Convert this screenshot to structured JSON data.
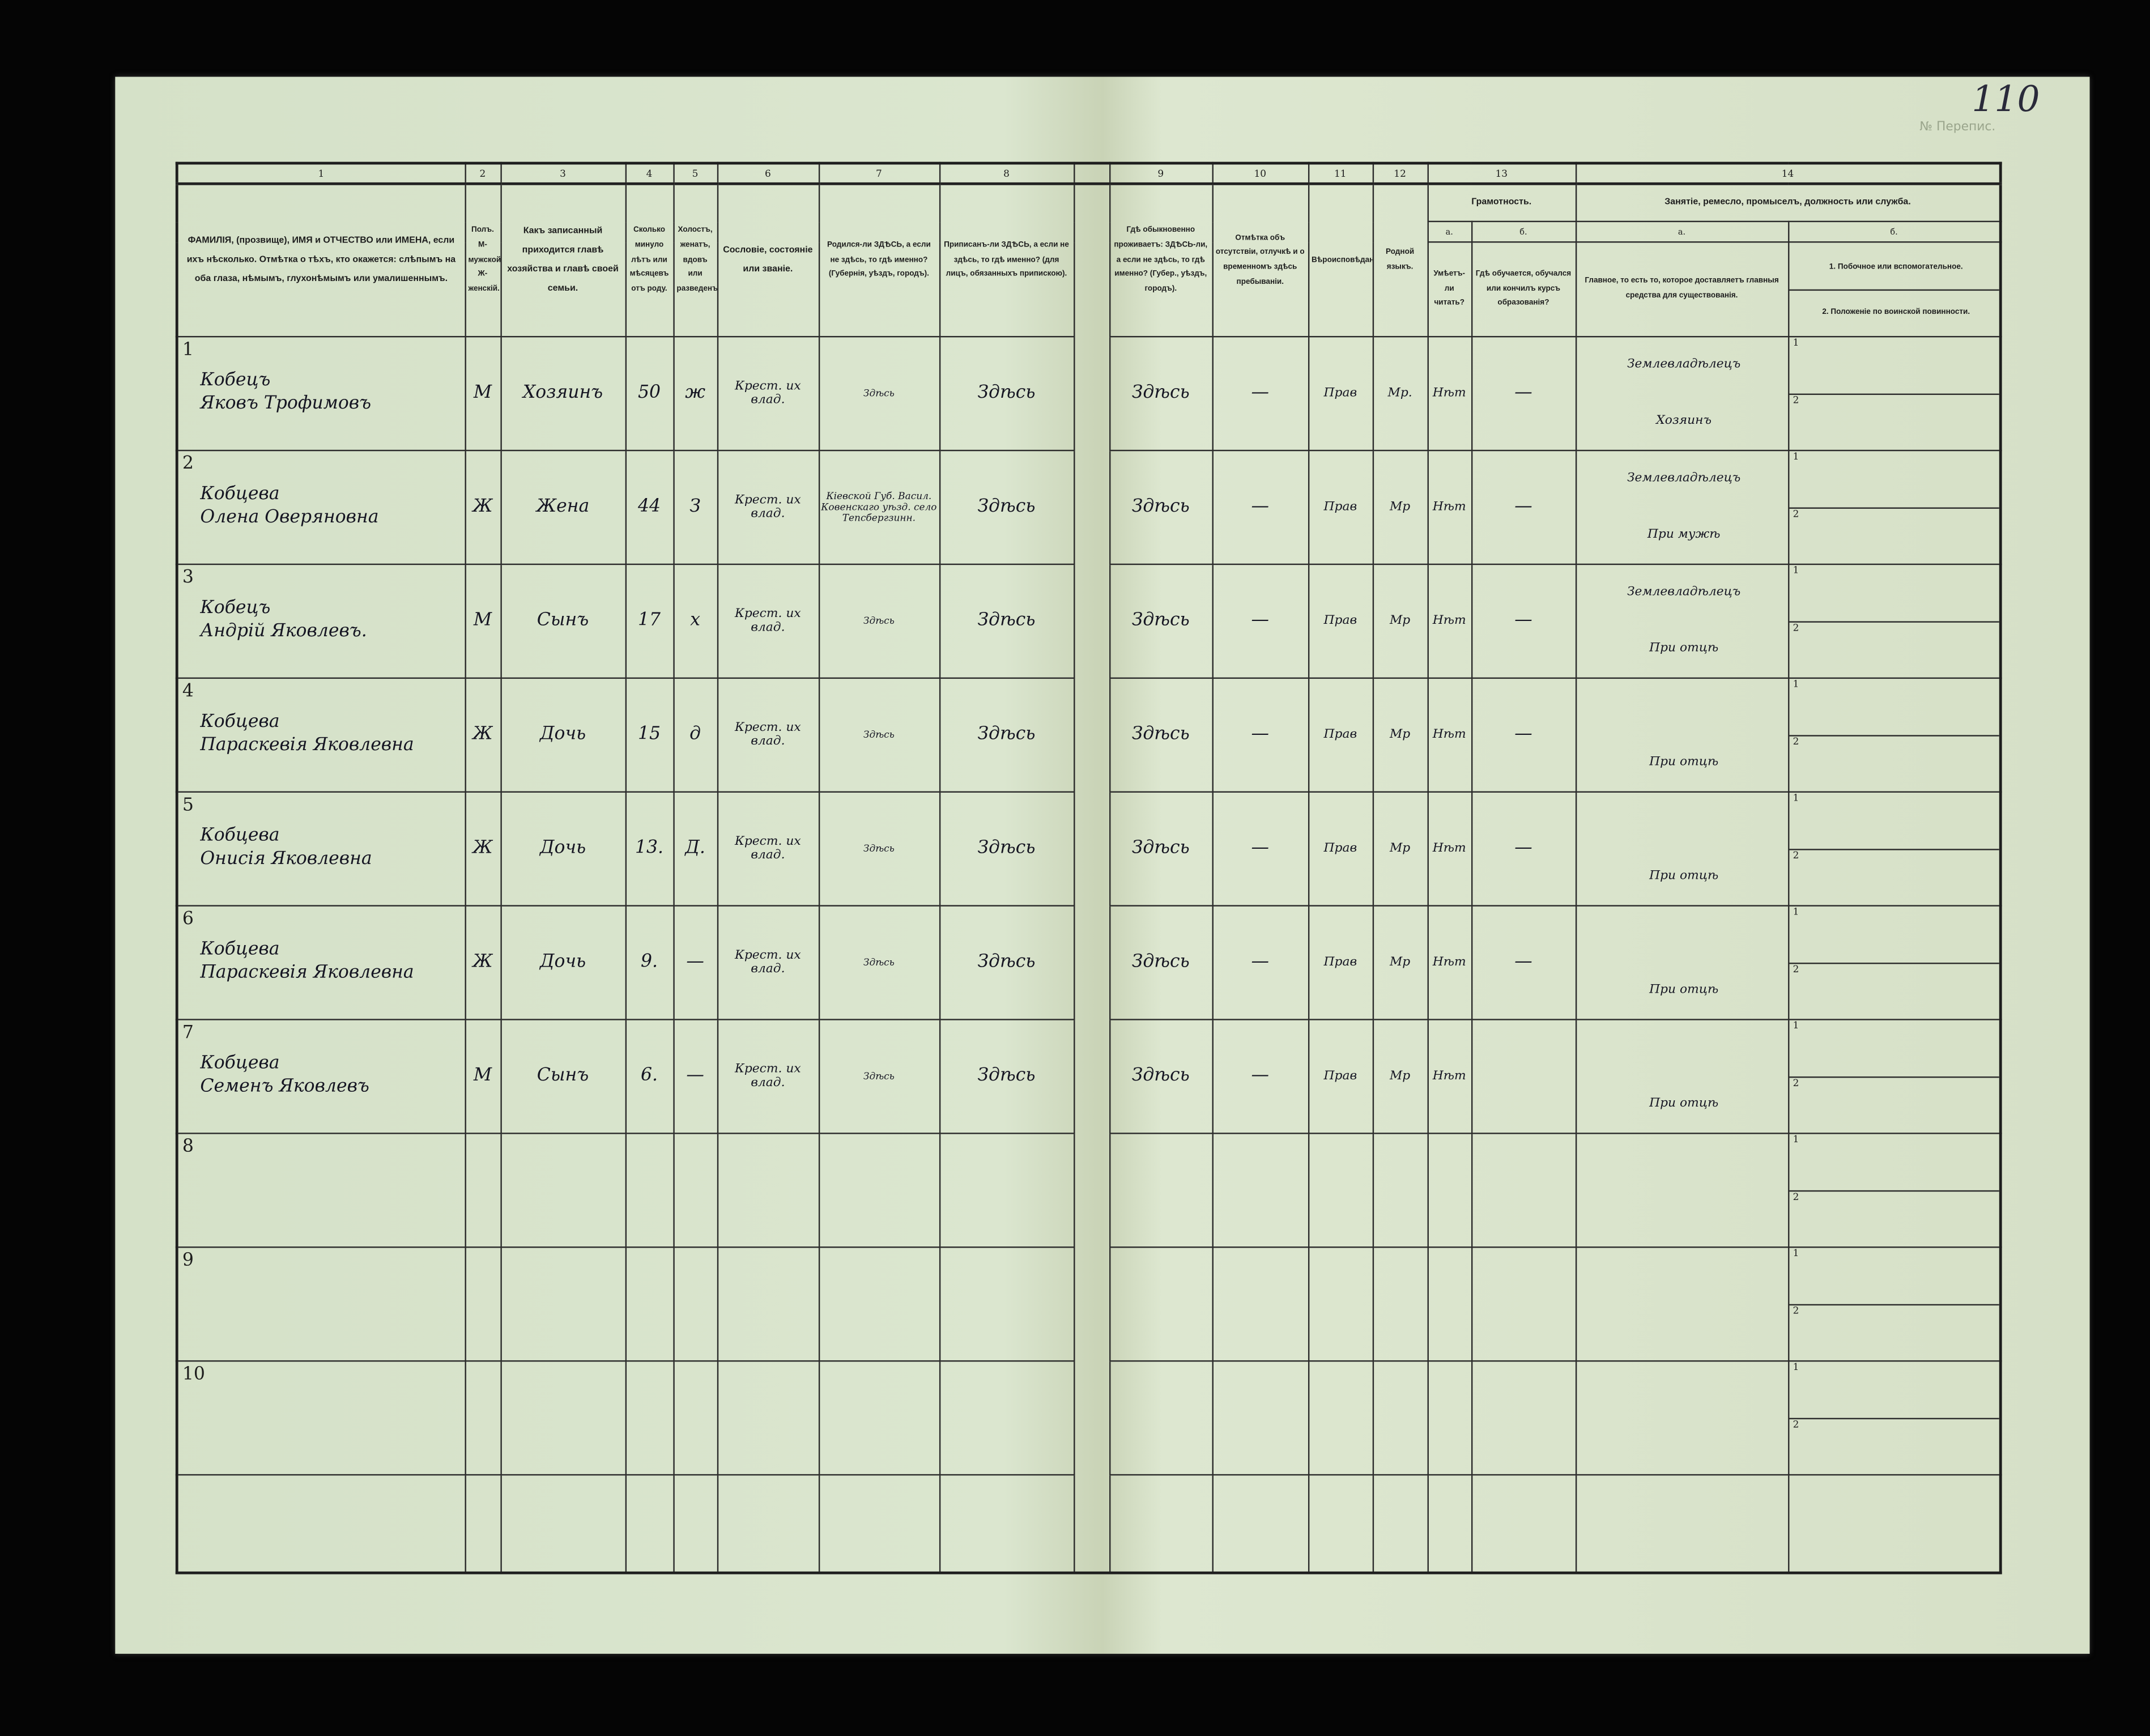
{
  "page_number": "110",
  "form_corner_label": "№ Перепис.",
  "column_numbers": [
    "1",
    "2",
    "3",
    "4",
    "5",
    "6",
    "7",
    "8",
    "9",
    "10",
    "11",
    "12",
    "13",
    "14"
  ],
  "headers": {
    "c1": "ФАМИЛІЯ, (прозвище), ИМЯ и ОТЧЕСТВО или ИМЕНА, если ихъ нѣсколько. Отмѣтка о тѣхъ, кто окажется: слѣпымъ на оба глаза, нѣмымъ, глухонѣмымъ или умалишеннымъ.",
    "c2": "Полъ. М-мужской. Ж-женскій.",
    "c3": "Какъ записанный приходится главѣ хозяйства и главѣ своей семьи.",
    "c4": "Сколько минуло лѣтъ или мѣсяцевъ отъ роду.",
    "c5": "Холостъ, женатъ, вдовъ или разведенъ.",
    "c6": "Сословіе, состояніе или званіе.",
    "c7": "Родился-ли ЗДѢСЬ, а если не здѣсь, то гдѣ именно? (Губернія, уѣздъ, городъ).",
    "c8": "Приписанъ-ли ЗДѢСЬ, а если не здѣсь, то гдѣ именно? (для лицъ, обязанныхъ припискою).",
    "c9": "Гдѣ обыкновенно проживаетъ: ЗДѢСЬ-ли, а если не здѣсь, то гдѣ именно? (Губер., уѣздъ, городъ).",
    "c10": "Отмѣтка объ отсутствіи, отлучкѣ и о временномъ здѣсь пребываніи.",
    "c11": "Вѣроисповѣданіе.",
    "c12": "Родной языкъ.",
    "c13": "Грамотность.",
    "c13a_letter": "а.",
    "c13a": "Умѣетъ-ли читать?",
    "c13b_letter": "б.",
    "c13b": "Гдѣ обучается, обучался или кончилъ курсъ образованія?",
    "c14": "Занятіе, ремесло, промыселъ, должность или служба.",
    "c14a_letter": "а.",
    "c14a": "Главное, то есть то, которое доставляетъ главныя средства для существованія.",
    "c14b_letter": "б.",
    "c14b_1": "1. Побочное или вспомогательное.",
    "c14b_2": "2. Положеніе по воинской повинности."
  },
  "sub_labels": [
    "1",
    "2"
  ],
  "rows": [
    {
      "n": "1",
      "surname": "Кобецъ",
      "given": "Яковъ Трофимовъ",
      "sex": "М",
      "relation": "Хозяинъ",
      "age": "50",
      "marital": "ж",
      "estate": "Крест. их влад.",
      "born": "Здѣсь",
      "registered": "Здѣсь",
      "residence": "Здѣсь",
      "absence": "—",
      "religion": "Прав",
      "language": "Мр.",
      "literate": "Нѣт",
      "education": "—",
      "occupation": "Землевладѣлецъ",
      "occupation2": "Хозяинъ"
    },
    {
      "n": "2",
      "surname": "Кобцева",
      "given": "Олена Оверяновна",
      "sex": "Ж",
      "relation": "Жена",
      "age": "44",
      "marital": "З",
      "estate": "Крест. их влад.",
      "born": "Кіевской Губ. Васил. Ковенскаго уѣзд. село Тепсбергзинн.",
      "registered": "Здѣсь",
      "residence": "Здѣсь",
      "absence": "—",
      "religion": "Прав",
      "language": "Мр",
      "literate": "Нѣт",
      "education": "—",
      "occupation": "Землевладѣлецъ",
      "occupation2": "При мужѣ"
    },
    {
      "n": "3",
      "surname": "Кобецъ",
      "given": "Андрій Яковлевъ.",
      "sex": "М",
      "relation": "Сынъ",
      "age": "17",
      "marital": "х",
      "estate": "Крест. их влад.",
      "born": "Здѣсь",
      "registered": "Здѣсь",
      "residence": "Здѣсь",
      "absence": "—",
      "religion": "Прав",
      "language": "Мр",
      "literate": "Нѣт",
      "education": "—",
      "occupation": "Землевладѣлецъ",
      "occupation2": "При отцѣ"
    },
    {
      "n": "4",
      "surname": "Кобцева",
      "given": "Параскевія Яковлевна",
      "sex": "Ж",
      "relation": "Дочь",
      "age": "15",
      "marital": "д",
      "estate": "Крест. их влад.",
      "born": "Здѣсь",
      "registered": "Здѣсь",
      "residence": "Здѣсь",
      "absence": "—",
      "religion": "Прав",
      "language": "Мр",
      "literate": "Нѣт",
      "education": "—",
      "occupation": "",
      "occupation2": "При отцѣ"
    },
    {
      "n": "5",
      "surname": "Кобцева",
      "given": "Онисія Яковлевна",
      "sex": "Ж",
      "relation": "Дочь",
      "age": "13.",
      "marital": "Д.",
      "estate": "Крест. их влад.",
      "born": "Здѣсь",
      "registered": "Здѣсь",
      "residence": "Здѣсь",
      "absence": "—",
      "religion": "Прав",
      "language": "Мр",
      "literate": "Нѣт",
      "education": "—",
      "occupation": "",
      "occupation2": "При отцѣ"
    },
    {
      "n": "6",
      "surname": "Кобцева",
      "given": "Параскевія Яковлевна",
      "sex": "Ж",
      "relation": "Дочь",
      "age": "9.",
      "marital": "—",
      "estate": "Крест. их влад.",
      "born": "Здѣсь",
      "registered": "Здѣсь",
      "residence": "Здѣсь",
      "absence": "—",
      "religion": "Прав",
      "language": "Мр",
      "literate": "Нѣт",
      "education": "—",
      "occupation": "",
      "occupation2": "При отцѣ"
    },
    {
      "n": "7",
      "surname": "Кобцева",
      "given": "Семенъ Яковлевъ",
      "sex": "М",
      "relation": "Сынъ",
      "age": "6.",
      "marital": "—",
      "estate": "Крест. их влад.",
      "born": "Здѣсь",
      "registered": "Здѣсь",
      "residence": "Здѣсь",
      "absence": "—",
      "religion": "Прав",
      "language": "Мр",
      "literate": "Нѣт",
      "education": "",
      "occupation": "",
      "occupation2": "При отцѣ"
    },
    {
      "n": "8"
    },
    {
      "n": "9"
    },
    {
      "n": "10"
    }
  ],
  "colors": {
    "paper": "#d8e3cb",
    "ink": "#1d1d1d",
    "background": "#050505"
  }
}
